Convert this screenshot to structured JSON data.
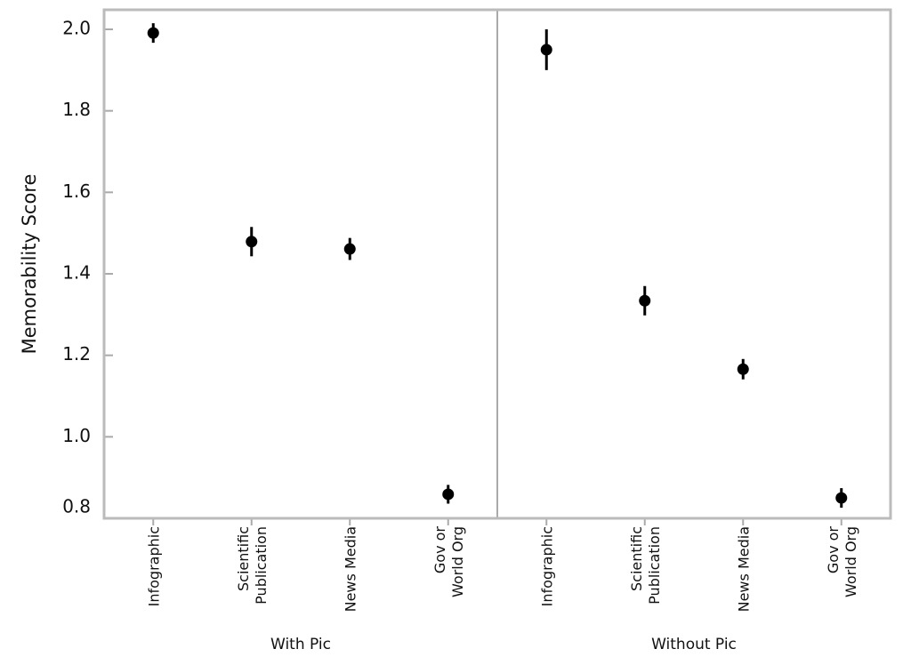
{
  "chart_data": {
    "type": "dot",
    "y_label": "Memorability Score",
    "ylim": [
      0.8,
      2.048
    ],
    "yticks": [
      0.8,
      {
        "value": 1.0,
        "label": "1.0"
      },
      1.2,
      1.4,
      1.6,
      1.8,
      {
        "value": 2.0,
        "label": "2.0"
      }
    ],
    "categories": [
      "Infographic",
      "Scientific\nPublication",
      "News Media",
      "Gov or\nWorld Org"
    ],
    "color": "#000000",
    "panels": [
      {
        "name": "With Pic",
        "values": [
          1.991,
          1.479,
          1.461,
          0.859
        ],
        "errors": [
          0.024,
          0.036,
          0.027,
          0.023
        ]
      },
      {
        "name": "Without Pic",
        "values": [
          1.95,
          1.334,
          1.166,
          0.85
        ],
        "errors": [
          0.05,
          0.036,
          0.025,
          0.024
        ]
      }
    ]
  }
}
